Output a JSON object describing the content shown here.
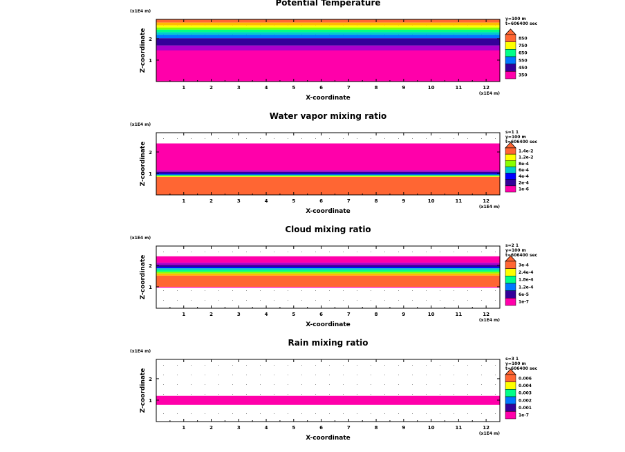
{
  "figure": {
    "panels": [
      {
        "title": "Potential Temperature",
        "xlabel": "X-coordinate",
        "ylabel": "Z-coordinate",
        "xunit": "(x1E4 m)",
        "zunit": "(x1E4 m)",
        "info": [
          "y=100 m",
          "t=606400 sec"
        ],
        "legend_labels": [
          "850",
          "750",
          "650",
          "550",
          "450",
          "350"
        ],
        "colors": [
          "#ff00aa",
          "#aa00cc",
          "#330099",
          "#0000ff",
          "#0077ff",
          "#00cccc",
          "#00ff88",
          "#88ff00",
          "#ffff00",
          "#ffbb00",
          "#ff6633"
        ],
        "bands": [
          {
            "z0": 2.75,
            "z1": 2.9,
            "color": 10
          },
          {
            "z0": 2.62,
            "z1": 2.75,
            "color": 9
          },
          {
            "z0": 2.52,
            "z1": 2.62,
            "color": 8
          },
          {
            "z0": 2.42,
            "z1": 2.52,
            "color": 7
          },
          {
            "z0": 2.3,
            "z1": 2.42,
            "color": 6
          },
          {
            "z0": 2.18,
            "z1": 2.3,
            "color": 5
          },
          {
            "z0": 2.02,
            "z1": 2.18,
            "color": 4
          },
          {
            "z0": 1.68,
            "z1": 2.02,
            "color": 2
          },
          {
            "z0": 1.45,
            "z1": 1.68,
            "color": 1
          },
          {
            "z0": 0.0,
            "z1": 1.45,
            "color": 0
          }
        ]
      },
      {
        "title": "Water vapor mixing ratio",
        "xlabel": "X-coordinate",
        "ylabel": "Z-coordinate",
        "xunit": "(x1E4 m)",
        "zunit": "(x1E4 m)",
        "info": [
          "s=1 1",
          "y=100 m",
          "t=606400 sec"
        ],
        "legend_labels": [
          "1.4e-2",
          "1.2e-2",
          "8e-4",
          "6e-4",
          "4e-4",
          "2e-4",
          "1e-6"
        ],
        "colors": [
          "#ff00aa",
          "#aa00cc",
          "#330099",
          "#0000ff",
          "#0077ff",
          "#00cccc",
          "#00ff88",
          "#88ff00",
          "#ffff00",
          "#ffbb00",
          "#ff6633"
        ],
        "bands": [
          {
            "z0": 1.15,
            "z1": 2.4,
            "color": 0
          },
          {
            "z0": 1.07,
            "z1": 1.15,
            "color": 1
          },
          {
            "z0": 1.0,
            "z1": 1.07,
            "color": 2
          },
          {
            "z0": 0.95,
            "z1": 1.0,
            "color": 3
          },
          {
            "z0": 0.9,
            "z1": 0.95,
            "color": 5
          },
          {
            "z0": 0.86,
            "z1": 0.9,
            "color": 7
          },
          {
            "z0": 0.84,
            "z1": 0.86,
            "color": 8
          },
          {
            "z0": 0.0,
            "z1": 0.84,
            "color": 10
          }
        ]
      },
      {
        "title": "Cloud mixing ratio",
        "xlabel": "X-coordinate",
        "ylabel": "Z-coordinate",
        "xunit": "(x1E4 m)",
        "zunit": "(x1E4 m)",
        "info": [
          "s=2 1",
          "y=100 m",
          "t=606400 sec"
        ],
        "legend_labels": [
          "3e-4",
          "2.4e-4",
          "1.8e-4",
          "1.2e-4",
          "6e-5",
          "1e-7"
        ],
        "colors": [
          "#ff00aa",
          "#aa00cc",
          "#330099",
          "#0000ff",
          "#0077ff",
          "#00cccc",
          "#00ff88",
          "#88ff00",
          "#ffff00",
          "#ffbb00",
          "#ff6633"
        ],
        "bands": [
          {
            "z0": 2.12,
            "z1": 2.42,
            "color": 0
          },
          {
            "z0": 2.02,
            "z1": 2.12,
            "color": 1
          },
          {
            "z0": 1.93,
            "z1": 2.02,
            "color": 2
          },
          {
            "z0": 1.86,
            "z1": 1.93,
            "color": 3
          },
          {
            "z0": 1.78,
            "z1": 1.86,
            "color": 5
          },
          {
            "z0": 1.7,
            "z1": 1.78,
            "color": 6
          },
          {
            "z0": 1.62,
            "z1": 1.7,
            "color": 7
          },
          {
            "z0": 1.52,
            "z1": 1.62,
            "color": 9
          },
          {
            "z0": 1.0,
            "z1": 1.52,
            "color": 10
          },
          {
            "z0": 0.96,
            "z1": 1.0,
            "color": 0
          }
        ]
      },
      {
        "title": "Rain mixing ratio",
        "xlabel": "X-coordinate",
        "ylabel": "Z-coordinate",
        "xunit": "(x1E4 m)",
        "zunit": "(x1E4 m)",
        "info": [
          "s=3 1",
          "y=100 m",
          "t=606400 sec"
        ],
        "legend_labels": [
          "0.006",
          "0.004",
          "0.003",
          "0.002",
          "0.001",
          "1e-7"
        ],
        "colors": [
          "#ff00aa",
          "#aa00cc",
          "#330099",
          "#0000ff",
          "#0077ff",
          "#00cccc",
          "#00ff88",
          "#88ff00",
          "#ffff00",
          "#ffbb00",
          "#ff6633"
        ],
        "bands": [
          {
            "z0": 0.78,
            "z1": 1.2,
            "color": 0
          }
        ]
      }
    ]
  },
  "chart_data": [
    {
      "type": "heatmap",
      "title": "Potential Temperature",
      "xlabel": "X-coordinate",
      "ylabel": "Z-coordinate",
      "xlim": [
        0,
        12.5
      ],
      "ylim": [
        0,
        2.9
      ],
      "x_ticks": [
        1,
        2,
        3,
        4,
        5,
        6,
        7,
        8,
        9,
        10,
        11,
        12
      ],
      "y_ticks": [
        1,
        2
      ],
      "legend": "right",
      "legend_labels": [
        "850",
        "750",
        "650",
        "550",
        "450",
        "350"
      ]
    },
    {
      "type": "heatmap",
      "title": "Water vapor mixing ratio",
      "xlabel": "X-coordinate",
      "ylabel": "Z-coordinate",
      "xlim": [
        0,
        12.5
      ],
      "ylim": [
        0,
        2.9
      ],
      "x_ticks": [
        1,
        2,
        3,
        4,
        5,
        6,
        7,
        8,
        9,
        10,
        11,
        12
      ],
      "y_ticks": [
        1,
        2
      ],
      "legend": "right",
      "legend_labels": [
        "1.4e-2",
        "1.2e-2",
        "8e-4",
        "6e-4",
        "4e-4",
        "2e-4",
        "1e-6"
      ]
    },
    {
      "type": "heatmap",
      "title": "Cloud mixing ratio",
      "xlabel": "X-coordinate",
      "ylabel": "Z-coordinate",
      "xlim": [
        0,
        12.5
      ],
      "ylim": [
        0,
        2.9
      ],
      "x_ticks": [
        1,
        2,
        3,
        4,
        5,
        6,
        7,
        8,
        9,
        10,
        11,
        12
      ],
      "y_ticks": [
        1,
        2
      ],
      "legend": "right",
      "legend_labels": [
        "3e-4",
        "2.4e-4",
        "1.8e-4",
        "1.2e-4",
        "6e-5",
        "1e-7"
      ]
    },
    {
      "type": "heatmap",
      "title": "Rain mixing ratio",
      "xlabel": "X-coordinate",
      "ylabel": "Z-coordinate",
      "xlim": [
        0,
        12.5
      ],
      "ylim": [
        0,
        2.9
      ],
      "x_ticks": [
        1,
        2,
        3,
        4,
        5,
        6,
        7,
        8,
        9,
        10,
        11,
        12
      ],
      "y_ticks": [
        1,
        2
      ],
      "legend": "right",
      "legend_labels": [
        "0.006",
        "0.004",
        "0.003",
        "0.002",
        "0.001",
        "1e-7"
      ]
    }
  ]
}
